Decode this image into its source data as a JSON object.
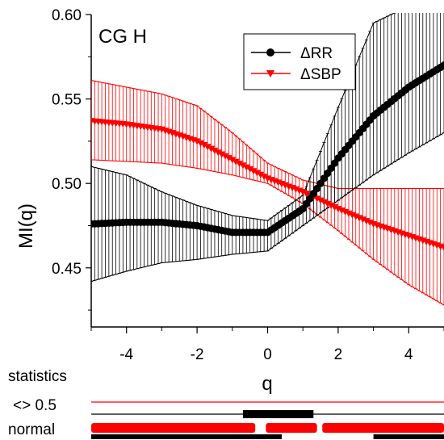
{
  "chart_data": {
    "type": "line",
    "panel_label": "CG H",
    "xlabel": "q",
    "ylabel": "MI(q)",
    "xlim": [
      -5,
      5
    ],
    "ylim": [
      0.415,
      0.6
    ],
    "x_ticks": [
      -4,
      -2,
      0,
      2,
      4
    ],
    "y_ticks": [
      0.45,
      0.5,
      0.55,
      0.6
    ],
    "x_tick_labels": [
      "-4",
      "-2",
      "0",
      "2",
      "4"
    ],
    "y_tick_labels": [
      "0.45",
      "0.50",
      "0.55",
      "0.60"
    ],
    "legend_position": "top-right",
    "series": [
      {
        "name": "ΔRR",
        "color": "#000000",
        "marker": "circle",
        "x": [
          -5,
          -4,
          -3,
          -2,
          -1,
          0,
          1,
          2,
          3,
          4,
          5
        ],
        "y": [
          0.476,
          0.477,
          0.477,
          0.475,
          0.471,
          0.471,
          0.485,
          0.515,
          0.54,
          0.557,
          0.57
        ],
        "y_upper": [
          0.51,
          0.505,
          0.495,
          0.487,
          0.481,
          0.478,
          0.493,
          0.545,
          0.595,
          0.605,
          0.612
        ],
        "y_lower": [
          0.442,
          0.448,
          0.453,
          0.455,
          0.458,
          0.46,
          0.475,
          0.49,
          0.505,
          0.518,
          0.53
        ]
      },
      {
        "name": "ΔSBP",
        "color": "#ff0000",
        "marker": "triangle-down",
        "x": [
          -5,
          -4,
          -3,
          -2,
          -1,
          0,
          1,
          2,
          3,
          4,
          5
        ],
        "y": [
          0.537,
          0.535,
          0.532,
          0.525,
          0.514,
          0.503,
          0.495,
          0.485,
          0.476,
          0.469,
          0.462
        ],
        "y_upper": [
          0.561,
          0.557,
          0.553,
          0.546,
          0.53,
          0.512,
          0.502,
          0.497,
          0.497,
          0.497,
          0.497
        ],
        "y_lower": [
          0.514,
          0.513,
          0.512,
          0.509,
          0.505,
          0.5,
          0.488,
          0.472,
          0.455,
          0.44,
          0.428
        ]
      }
    ]
  },
  "statistics": {
    "title": "statistics",
    "rows": [
      {
        "label": "<> 0.5",
        "black_segments": [
          [
            -0.7,
            1.3
          ]
        ],
        "red_segments": []
      },
      {
        "label": "normal",
        "black_segments": [
          [
            -5,
            0.4
          ],
          [
            3,
            5
          ]
        ],
        "red_segments": [
          [
            -5,
            -0.35
          ],
          [
            -0.05,
            1.4
          ],
          [
            1.55,
            5
          ]
        ]
      }
    ]
  }
}
